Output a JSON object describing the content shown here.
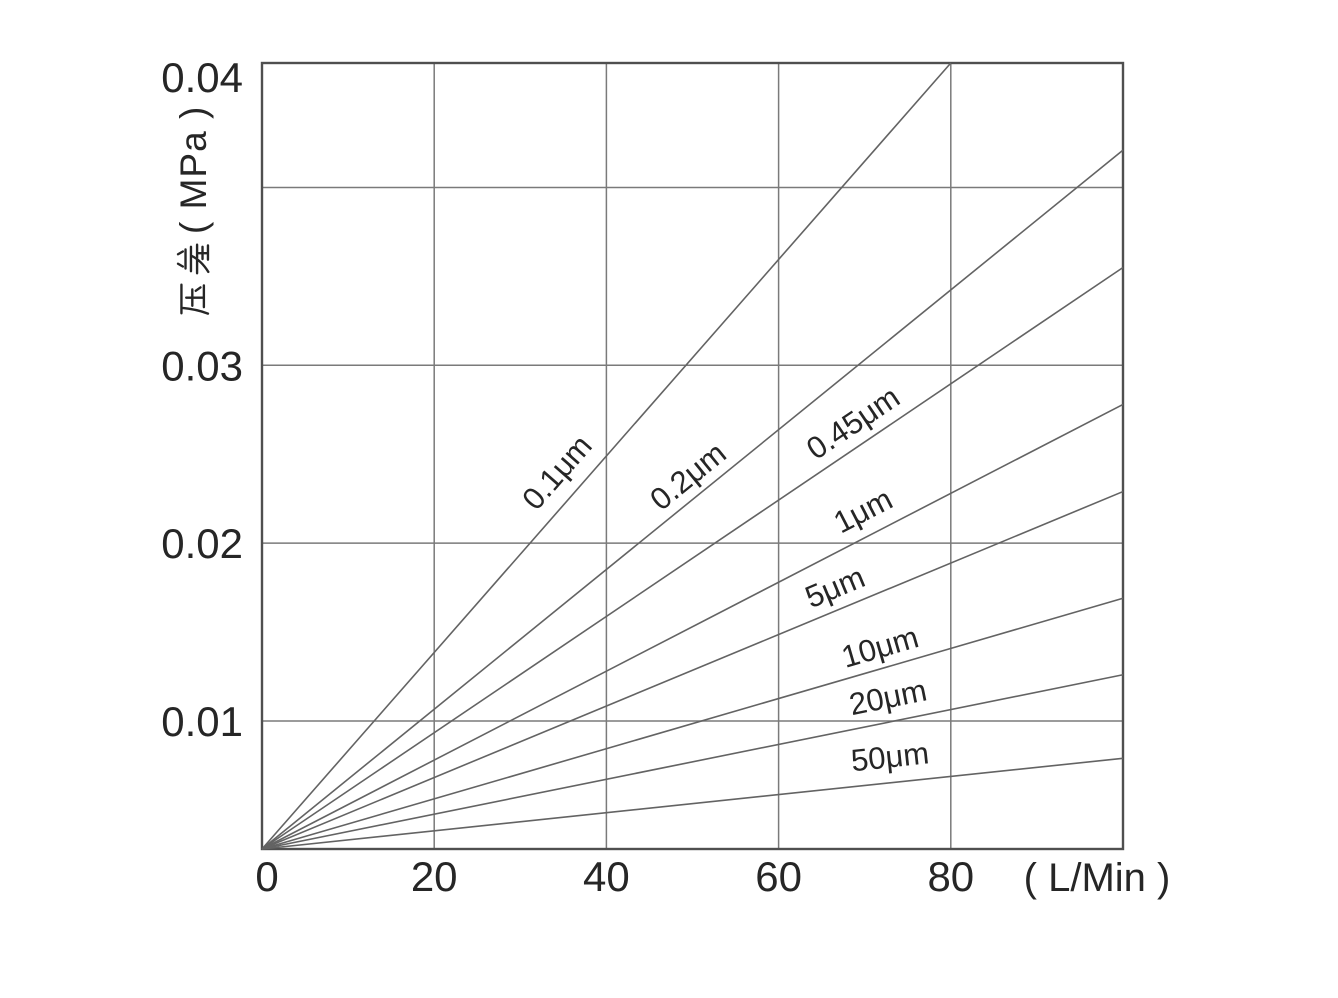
{
  "page": {
    "background": "#ffffff"
  },
  "colors": {
    "text": "#262626",
    "frame": "#4f4f4f",
    "grid": "#7a7a7a",
    "series_line": "#636363"
  },
  "chart_data": {
    "type": "line",
    "title": "",
    "xlabel": "( L/Min )",
    "ylabel": "压差（MPa）",
    "ylabel_cjk": "压差",
    "ylabel_unit": "( MPa )",
    "xlim": [
      0,
      100
    ],
    "ylim": [
      0.0028,
      0.047
    ],
    "xtick_values": [
      0,
      20,
      40,
      60,
      80
    ],
    "xtick_labels": [
      "0",
      "20",
      "40",
      "60",
      "80"
    ],
    "ytick_values": [
      0.01,
      0.02,
      0.03,
      0.04
    ],
    "ytick_labels": [
      "0.01",
      "0.02",
      "0.03",
      "0.04"
    ],
    "grid": true,
    "legend_position": "labels-along-lines",
    "series": [
      {
        "name": "0.1μm",
        "x": [
          0,
          80
        ],
        "y": [
          0.0028,
          0.047
        ]
      },
      {
        "name": "0.2μm",
        "x": [
          0,
          100
        ],
        "y": [
          0.0028,
          0.0421
        ]
      },
      {
        "name": "0.45μm",
        "x": [
          0,
          100
        ],
        "y": [
          0.0028,
          0.0355
        ]
      },
      {
        "name": "1μm",
        "x": [
          0,
          100
        ],
        "y": [
          0.0028,
          0.0278
        ]
      },
      {
        "name": "5μm",
        "x": [
          0,
          100
        ],
        "y": [
          0.0028,
          0.0229
        ]
      },
      {
        "name": "10μm",
        "x": [
          0,
          100
        ],
        "y": [
          0.0028,
          0.0169
        ]
      },
      {
        "name": "20μm",
        "x": [
          0,
          100
        ],
        "y": [
          0.0028,
          0.0126
        ]
      },
      {
        "name": "50μm",
        "x": [
          0,
          100
        ],
        "y": [
          0.0028,
          0.0079
        ]
      }
    ]
  }
}
